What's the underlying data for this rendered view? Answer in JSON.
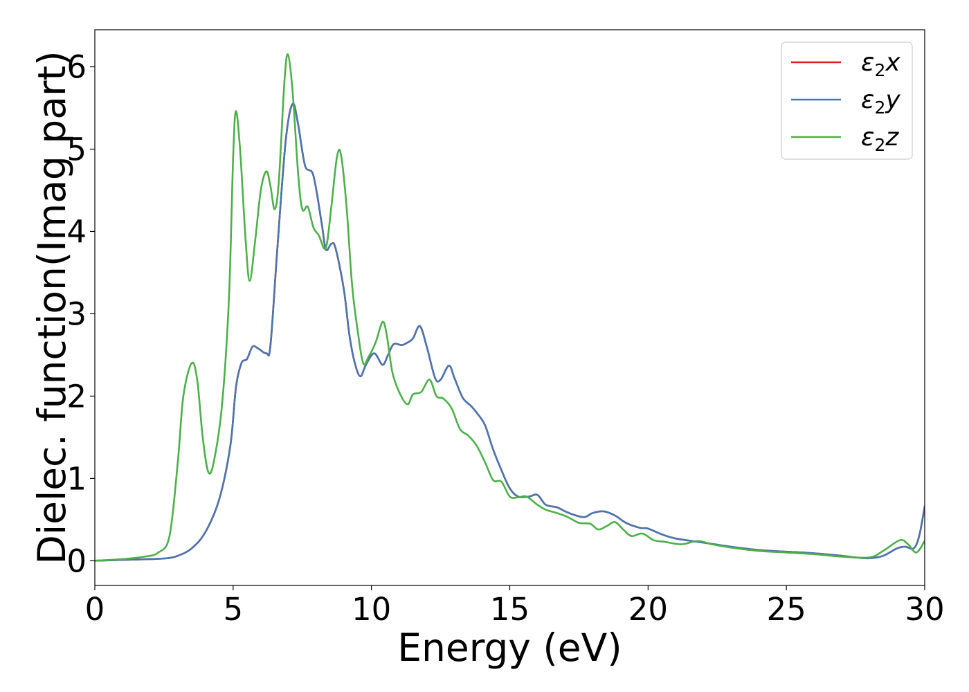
{
  "chart_data": {
    "type": "line",
    "title": "",
    "xlabel": "Energy (eV)",
    "ylabel": "Dielec. function(Imag part)",
    "xlim": [
      0,
      30
    ],
    "ylim": [
      -0.3,
      6.45
    ],
    "xticks": [
      0,
      5,
      10,
      15,
      20,
      25,
      30
    ],
    "yticks": [
      0,
      1,
      2,
      3,
      4,
      5,
      6
    ],
    "grid": false,
    "legend_position": "top-right",
    "series": [
      {
        "name": "ε2x",
        "legend_base": "ε",
        "legend_sub": "2",
        "legend_suffix": "x",
        "color": "#e41a1c",
        "points": [
          [
            0,
            0
          ],
          [
            1,
            0.01
          ],
          [
            2,
            0.02
          ],
          [
            2.6,
            0.03
          ],
          [
            3,
            0.06
          ],
          [
            3.5,
            0.15
          ],
          [
            4,
            0.35
          ],
          [
            4.5,
            0.75
          ],
          [
            4.9,
            1.4
          ],
          [
            5.1,
            2.1
          ],
          [
            5.3,
            2.4
          ],
          [
            5.5,
            2.45
          ],
          [
            5.7,
            2.6
          ],
          [
            5.9,
            2.58
          ],
          [
            6.2,
            2.52
          ],
          [
            6.35,
            2.62
          ],
          [
            6.6,
            3.8
          ],
          [
            6.9,
            5.1
          ],
          [
            7.15,
            5.55
          ],
          [
            7.35,
            5.3
          ],
          [
            7.6,
            4.8
          ],
          [
            7.9,
            4.68
          ],
          [
            8.2,
            4.1
          ],
          [
            8.35,
            3.78
          ],
          [
            8.55,
            3.85
          ],
          [
            8.7,
            3.8
          ],
          [
            9.0,
            3.3
          ],
          [
            9.2,
            2.75
          ],
          [
            9.4,
            2.4
          ],
          [
            9.6,
            2.24
          ],
          [
            9.8,
            2.38
          ],
          [
            10.1,
            2.52
          ],
          [
            10.4,
            2.38
          ],
          [
            10.6,
            2.5
          ],
          [
            10.8,
            2.63
          ],
          [
            11.1,
            2.62
          ],
          [
            11.3,
            2.65
          ],
          [
            11.5,
            2.7
          ],
          [
            11.75,
            2.85
          ],
          [
            12.0,
            2.6
          ],
          [
            12.3,
            2.22
          ],
          [
            12.5,
            2.2
          ],
          [
            12.8,
            2.37
          ],
          [
            13.0,
            2.22
          ],
          [
            13.3,
            1.98
          ],
          [
            13.6,
            1.88
          ],
          [
            13.8,
            1.8
          ],
          [
            14.1,
            1.65
          ],
          [
            14.4,
            1.35
          ],
          [
            14.7,
            1.1
          ],
          [
            15.0,
            0.88
          ],
          [
            15.3,
            0.78
          ],
          [
            15.7,
            0.78
          ],
          [
            16.0,
            0.8
          ],
          [
            16.3,
            0.68
          ],
          [
            16.7,
            0.65
          ],
          [
            17.0,
            0.6
          ],
          [
            17.3,
            0.56
          ],
          [
            17.7,
            0.53
          ],
          [
            18.0,
            0.58
          ],
          [
            18.4,
            0.6
          ],
          [
            18.8,
            0.55
          ],
          [
            19.2,
            0.46
          ],
          [
            19.7,
            0.4
          ],
          [
            20.0,
            0.39
          ],
          [
            20.5,
            0.32
          ],
          [
            21,
            0.27
          ],
          [
            22,
            0.22
          ],
          [
            23,
            0.17
          ],
          [
            24,
            0.13
          ],
          [
            25,
            0.11
          ],
          [
            26,
            0.09
          ],
          [
            27,
            0.06
          ],
          [
            27.5,
            0.04
          ],
          [
            28,
            0.03
          ],
          [
            28.5,
            0.06
          ],
          [
            29,
            0.15
          ],
          [
            29.3,
            0.17
          ],
          [
            29.6,
            0.15
          ],
          [
            29.8,
            0.3
          ],
          [
            30,
            0.66
          ]
        ]
      },
      {
        "name": "ε2y",
        "legend_base": "ε",
        "legend_sub": "2",
        "legend_suffix": "y",
        "color": "#4a76b0",
        "points": [
          [
            0,
            0
          ],
          [
            1,
            0.01
          ],
          [
            2,
            0.02
          ],
          [
            2.6,
            0.03
          ],
          [
            3,
            0.06
          ],
          [
            3.5,
            0.15
          ],
          [
            4,
            0.35
          ],
          [
            4.5,
            0.75
          ],
          [
            4.9,
            1.4
          ],
          [
            5.1,
            2.1
          ],
          [
            5.3,
            2.4
          ],
          [
            5.5,
            2.45
          ],
          [
            5.7,
            2.6
          ],
          [
            5.9,
            2.58
          ],
          [
            6.2,
            2.52
          ],
          [
            6.35,
            2.62
          ],
          [
            6.6,
            3.8
          ],
          [
            6.9,
            5.1
          ],
          [
            7.15,
            5.55
          ],
          [
            7.35,
            5.3
          ],
          [
            7.6,
            4.8
          ],
          [
            7.9,
            4.68
          ],
          [
            8.2,
            4.1
          ],
          [
            8.35,
            3.78
          ],
          [
            8.55,
            3.85
          ],
          [
            8.7,
            3.8
          ],
          [
            9.0,
            3.3
          ],
          [
            9.2,
            2.75
          ],
          [
            9.4,
            2.4
          ],
          [
            9.6,
            2.24
          ],
          [
            9.8,
            2.38
          ],
          [
            10.1,
            2.52
          ],
          [
            10.4,
            2.38
          ],
          [
            10.6,
            2.5
          ],
          [
            10.8,
            2.63
          ],
          [
            11.1,
            2.62
          ],
          [
            11.3,
            2.65
          ],
          [
            11.5,
            2.7
          ],
          [
            11.75,
            2.85
          ],
          [
            12.0,
            2.6
          ],
          [
            12.3,
            2.22
          ],
          [
            12.5,
            2.2
          ],
          [
            12.8,
            2.37
          ],
          [
            13.0,
            2.22
          ],
          [
            13.3,
            1.98
          ],
          [
            13.6,
            1.88
          ],
          [
            13.8,
            1.8
          ],
          [
            14.1,
            1.65
          ],
          [
            14.4,
            1.35
          ],
          [
            14.7,
            1.1
          ],
          [
            15.0,
            0.88
          ],
          [
            15.3,
            0.78
          ],
          [
            15.7,
            0.78
          ],
          [
            16.0,
            0.8
          ],
          [
            16.3,
            0.68
          ],
          [
            16.7,
            0.65
          ],
          [
            17.0,
            0.6
          ],
          [
            17.3,
            0.56
          ],
          [
            17.7,
            0.53
          ],
          [
            18.0,
            0.58
          ],
          [
            18.4,
            0.6
          ],
          [
            18.8,
            0.55
          ],
          [
            19.2,
            0.46
          ],
          [
            19.7,
            0.4
          ],
          [
            20.0,
            0.39
          ],
          [
            20.5,
            0.32
          ],
          [
            21,
            0.27
          ],
          [
            22,
            0.22
          ],
          [
            23,
            0.17
          ],
          [
            24,
            0.13
          ],
          [
            25,
            0.11
          ],
          [
            26,
            0.09
          ],
          [
            27,
            0.06
          ],
          [
            27.5,
            0.04
          ],
          [
            28,
            0.03
          ],
          [
            28.5,
            0.06
          ],
          [
            29,
            0.15
          ],
          [
            29.3,
            0.17
          ],
          [
            29.6,
            0.15
          ],
          [
            29.8,
            0.3
          ],
          [
            30,
            0.66
          ]
        ]
      },
      {
        "name": "ε2z",
        "legend_base": "ε",
        "legend_sub": "2",
        "legend_suffix": "z",
        "color": "#4daf4a",
        "points": [
          [
            0,
            0
          ],
          [
            1,
            0.02
          ],
          [
            1.8,
            0.05
          ],
          [
            2.3,
            0.1
          ],
          [
            2.7,
            0.3
          ],
          [
            3.0,
            1.2
          ],
          [
            3.2,
            2.0
          ],
          [
            3.5,
            2.4
          ],
          [
            3.7,
            2.2
          ],
          [
            3.9,
            1.5
          ],
          [
            4.1,
            1.08
          ],
          [
            4.3,
            1.2
          ],
          [
            4.6,
            1.9
          ],
          [
            4.85,
            3.2
          ],
          [
            5.0,
            4.9
          ],
          [
            5.1,
            5.46
          ],
          [
            5.25,
            5.0
          ],
          [
            5.45,
            3.9
          ],
          [
            5.6,
            3.4
          ],
          [
            5.8,
            3.9
          ],
          [
            6.0,
            4.5
          ],
          [
            6.2,
            4.73
          ],
          [
            6.35,
            4.55
          ],
          [
            6.5,
            4.27
          ],
          [
            6.65,
            4.6
          ],
          [
            6.85,
            5.8
          ],
          [
            6.98,
            6.15
          ],
          [
            7.15,
            5.7
          ],
          [
            7.35,
            4.7
          ],
          [
            7.5,
            4.27
          ],
          [
            7.7,
            4.3
          ],
          [
            7.9,
            4.05
          ],
          [
            8.1,
            3.95
          ],
          [
            8.35,
            3.8
          ],
          [
            8.55,
            4.3
          ],
          [
            8.75,
            4.9
          ],
          [
            8.9,
            4.93
          ],
          [
            9.1,
            4.3
          ],
          [
            9.3,
            3.35
          ],
          [
            9.5,
            2.8
          ],
          [
            9.7,
            2.4
          ],
          [
            9.9,
            2.48
          ],
          [
            10.15,
            2.65
          ],
          [
            10.4,
            2.9
          ],
          [
            10.55,
            2.75
          ],
          [
            10.75,
            2.3
          ],
          [
            11.0,
            2.05
          ],
          [
            11.3,
            1.9
          ],
          [
            11.5,
            2.02
          ],
          [
            11.8,
            2.05
          ],
          [
            12.1,
            2.2
          ],
          [
            12.35,
            2.0
          ],
          [
            12.6,
            1.97
          ],
          [
            12.9,
            1.85
          ],
          [
            13.2,
            1.6
          ],
          [
            13.5,
            1.52
          ],
          [
            13.8,
            1.4
          ],
          [
            14.1,
            1.2
          ],
          [
            14.4,
            0.98
          ],
          [
            14.7,
            0.96
          ],
          [
            15.0,
            0.78
          ],
          [
            15.3,
            0.77
          ],
          [
            15.6,
            0.78
          ],
          [
            16.0,
            0.68
          ],
          [
            16.3,
            0.62
          ],
          [
            16.7,
            0.58
          ],
          [
            17.1,
            0.53
          ],
          [
            17.5,
            0.46
          ],
          [
            17.9,
            0.45
          ],
          [
            18.2,
            0.38
          ],
          [
            18.5,
            0.42
          ],
          [
            18.8,
            0.47
          ],
          [
            19.1,
            0.38
          ],
          [
            19.4,
            0.3
          ],
          [
            19.8,
            0.33
          ],
          [
            20.2,
            0.25
          ],
          [
            20.6,
            0.23
          ],
          [
            21.2,
            0.2
          ],
          [
            21.8,
            0.24
          ],
          [
            22.3,
            0.2
          ],
          [
            23,
            0.16
          ],
          [
            24,
            0.12
          ],
          [
            25,
            0.1
          ],
          [
            26,
            0.08
          ],
          [
            27,
            0.05
          ],
          [
            28,
            0.04
          ],
          [
            28.5,
            0.12
          ],
          [
            29.1,
            0.25
          ],
          [
            29.4,
            0.2
          ],
          [
            29.7,
            0.1
          ],
          [
            30,
            0.24
          ]
        ]
      }
    ]
  }
}
